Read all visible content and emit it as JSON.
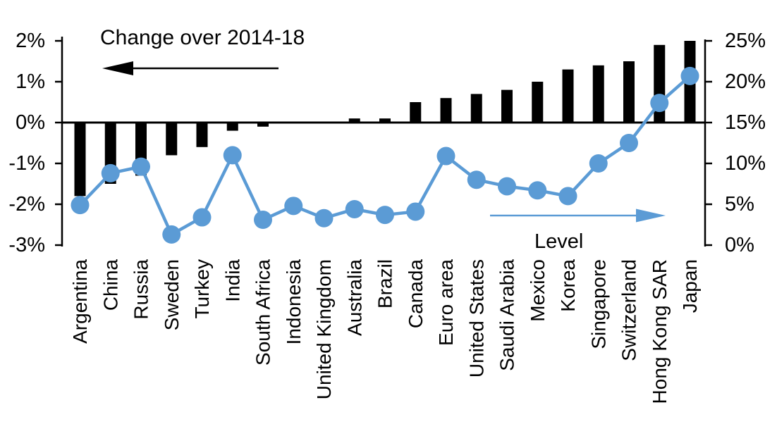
{
  "chart_data": {
    "type": "bar+line",
    "title": "",
    "categories": [
      "Argentina",
      "China",
      "Russia",
      "Sweden",
      "Turkey",
      "India",
      "South Africa",
      "Indonesia",
      "United Kingdom",
      "Australia",
      "Brazil",
      "Canada",
      "Euro area",
      "United States",
      "Saudi Arabia",
      "Mexico",
      "Korea",
      "Singapore",
      "Switzerland",
      "Hong Kong SAR",
      "Japan"
    ],
    "series": [
      {
        "name": "Change over 2014-18",
        "type": "bar",
        "axis": "left",
        "color": "#000000",
        "values": [
          -1.8,
          -1.5,
          -1.3,
          -0.8,
          -0.6,
          -0.2,
          -0.1,
          0.0,
          0.0,
          0.1,
          0.1,
          0.5,
          0.6,
          0.7,
          0.8,
          1.0,
          1.3,
          1.4,
          1.5,
          1.9,
          2.0
        ]
      },
      {
        "name": "Level",
        "type": "line",
        "axis": "right",
        "color": "#5B9BD5",
        "values": [
          4.9,
          8.8,
          9.6,
          1.3,
          3.4,
          11.0,
          3.1,
          4.8,
          3.3,
          4.4,
          3.7,
          4.1,
          10.9,
          8.0,
          7.2,
          6.7,
          6.0,
          10.0,
          12.5,
          17.4,
          20.7
        ]
      }
    ],
    "left_axis": {
      "tick_labels": [
        "2%",
        "1%",
        "0%",
        "-1%",
        "-2%",
        "-3%"
      ],
      "tick_values": [
        2,
        1,
        0,
        -1,
        -2,
        -3
      ],
      "range": [
        -3,
        2
      ]
    },
    "right_axis": {
      "tick_labels": [
        "25%",
        "20%",
        "15%",
        "10%",
        "5%",
        "0%"
      ],
      "tick_values": [
        25,
        20,
        15,
        10,
        5,
        0
      ],
      "range": [
        0,
        25
      ]
    },
    "annotations": {
      "bar_label": "Change over 2014-18",
      "line_label": "Level",
      "bar_arrow_direction": "left",
      "line_arrow_direction": "right"
    },
    "grid": false,
    "legend_position": "in-plot annotations with arrows"
  }
}
